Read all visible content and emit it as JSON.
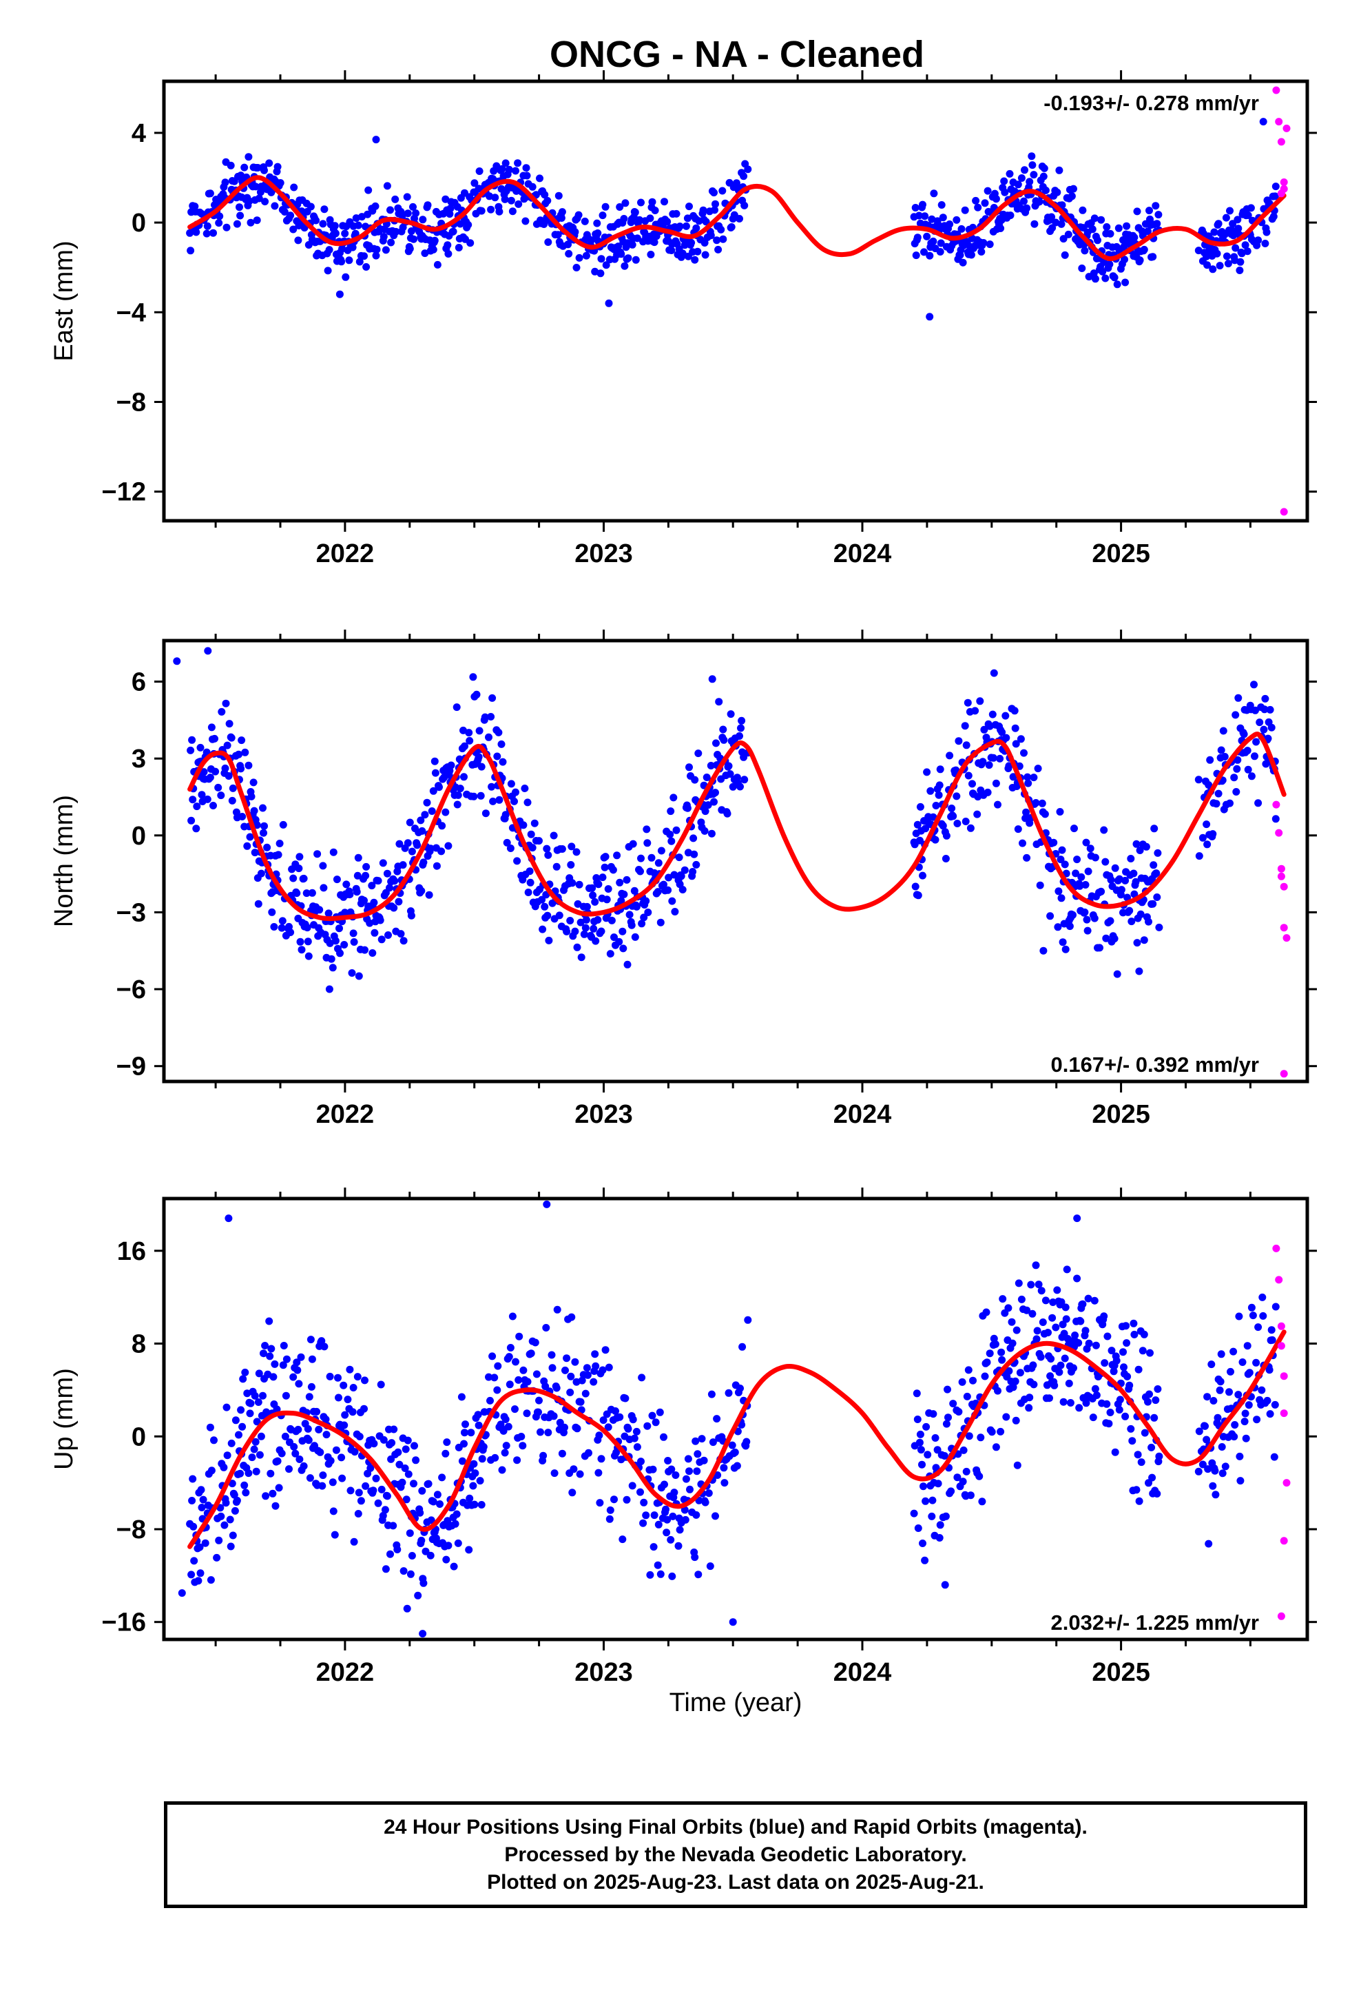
{
  "title": "ONCG  - NA - Cleaned",
  "x_axis_label": "Time (year)",
  "footer": {
    "line1": "24 Hour Positions Using Final Orbits (blue) and Rapid Orbits (magenta).",
    "line2": "Processed by the Nevada Geodetic Laboratory.",
    "line3": "Plotted on 2025-Aug-23. Last data on 2025-Aug-21."
  },
  "colors": {
    "final": "#0000ff",
    "rapid": "#ff00ff",
    "model": "#ff0000",
    "axis": "#000000"
  },
  "chart_data": [
    {
      "type": "scatter",
      "ylabel": "East (mm)",
      "rate_text": "-0.193+/- 0.278 mm/yr",
      "rate_position": "top-right",
      "xlim": [
        2021.3,
        2025.72
      ],
      "ylim": [
        -13.3,
        6.3
      ],
      "xticks": [
        2022,
        2023,
        2024,
        2025
      ],
      "yticks": [
        4,
        0,
        -4,
        -8,
        -12
      ],
      "model": {
        "x": [
          2021.4,
          2021.5,
          2021.6,
          2021.67,
          2021.75,
          2021.85,
          2021.95,
          2022.05,
          2022.15,
          2022.25,
          2022.35,
          2022.45,
          2022.55,
          2022.65,
          2022.75,
          2022.85,
          2022.95,
          2023.05,
          2023.15,
          2023.25,
          2023.35,
          2023.45,
          2023.55,
          2023.65,
          2023.75,
          2023.85,
          2023.95,
          2024.05,
          2024.15,
          2024.25,
          2024.35,
          2024.45,
          2024.55,
          2024.65,
          2024.75,
          2024.85,
          2024.95,
          2025.05,
          2025.15,
          2025.25,
          2025.35,
          2025.45,
          2025.55,
          2025.63
        ],
        "y": [
          -0.2,
          0.5,
          1.6,
          2.0,
          1.3,
          0.0,
          -0.9,
          -0.7,
          0.1,
          0.0,
          -0.3,
          0.3,
          1.5,
          1.8,
          0.8,
          -0.4,
          -1.1,
          -0.6,
          -0.2,
          -0.4,
          -0.6,
          0.3,
          1.5,
          1.4,
          0.0,
          -1.2,
          -1.4,
          -0.8,
          -0.3,
          -0.3,
          -0.7,
          -0.3,
          0.8,
          1.4,
          0.7,
          -0.6,
          -1.6,
          -1.1,
          -0.4,
          -0.3,
          -0.9,
          -0.8,
          0.3,
          1.2
        ]
      },
      "final": {
        "segments": [
          [
            2021.4,
            2023.56
          ],
          [
            2024.2,
            2025.15
          ],
          [
            2025.3,
            2025.6
          ]
        ],
        "amplitude": 0.8,
        "outliers": [
          [
            2022.12,
            3.7
          ],
          [
            2024.26,
            -4.2
          ],
          [
            2023.02,
            -3.6
          ],
          [
            2021.98,
            -3.2
          ],
          [
            2025.55,
            4.5
          ]
        ]
      },
      "rapid": {
        "x": [
          2025.6,
          2025.61,
          2025.62,
          2025.63,
          2025.63,
          2025.64,
          2025.62,
          2025.63
        ],
        "y": [
          5.9,
          4.5,
          3.6,
          1.8,
          1.5,
          4.2,
          1.3,
          -12.9
        ]
      }
    },
    {
      "type": "scatter",
      "ylabel": "North (mm)",
      "rate_text": "0.167+/- 0.392 mm/yr",
      "rate_position": "bottom-right",
      "xlim": [
        2021.3,
        2025.72
      ],
      "ylim": [
        -9.6,
        7.6
      ],
      "xticks": [
        2022,
        2023,
        2024,
        2025
      ],
      "yticks": [
        6,
        3,
        0,
        -3,
        -6,
        -9
      ],
      "model": {
        "x": [
          2021.4,
          2021.45,
          2021.5,
          2021.55,
          2021.6,
          2021.7,
          2021.8,
          2021.9,
          2022.0,
          2022.1,
          2022.2,
          2022.3,
          2022.4,
          2022.5,
          2022.55,
          2022.6,
          2022.7,
          2022.8,
          2022.9,
          2023.0,
          2023.1,
          2023.2,
          2023.3,
          2023.4,
          2023.5,
          2023.55,
          2023.6,
          2023.7,
          2023.8,
          2023.9,
          2024.0,
          2024.1,
          2024.2,
          2024.3,
          2024.4,
          2024.5,
          2024.55,
          2024.6,
          2024.7,
          2024.8,
          2024.9,
          2025.0,
          2025.1,
          2025.2,
          2025.3,
          2025.4,
          2025.5,
          2025.55,
          2025.63
        ],
        "y": [
          1.8,
          2.8,
          3.2,
          3.0,
          1.6,
          -1.2,
          -2.7,
          -3.2,
          -3.2,
          -3.0,
          -2.2,
          -0.5,
          1.8,
          3.4,
          3.1,
          2.0,
          -0.5,
          -2.3,
          -3.0,
          -3.0,
          -2.6,
          -1.8,
          -0.2,
          1.8,
          3.4,
          3.5,
          2.5,
          -0.1,
          -2.0,
          -2.8,
          -2.8,
          -2.3,
          -1.2,
          0.8,
          2.8,
          3.6,
          3.5,
          2.4,
          -0.1,
          -2.0,
          -2.7,
          -2.7,
          -2.2,
          -1.0,
          0.8,
          2.6,
          3.8,
          3.7,
          1.6
        ]
      },
      "final": {
        "segments": [
          [
            2021.4,
            2023.56
          ],
          [
            2024.2,
            2025.15
          ],
          [
            2025.3,
            2025.6
          ]
        ],
        "amplitude": 1.3,
        "outliers": [
          [
            2021.47,
            7.2
          ],
          [
            2021.35,
            6.8
          ],
          [
            2023.42,
            6.1
          ],
          [
            2021.94,
            -6.0
          ],
          [
            2024.7,
            -4.5
          ],
          [
            2025.07,
            -5.3
          ]
        ]
      },
      "rapid": {
        "x": [
          2025.6,
          2025.61,
          2025.62,
          2025.62,
          2025.63,
          2025.63,
          2025.64,
          2025.63
        ],
        "y": [
          1.2,
          0.1,
          -1.3,
          -1.6,
          -2.0,
          -3.6,
          -4.0,
          -9.3
        ]
      }
    },
    {
      "type": "scatter",
      "ylabel": "Up (mm)",
      "rate_text": "2.032+/- 1.225 mm/yr",
      "rate_position": "bottom-right",
      "xlim": [
        2021.3,
        2025.72
      ],
      "ylim": [
        -17.5,
        20.5
      ],
      "xticks": [
        2022,
        2023,
        2024,
        2025
      ],
      "yticks": [
        16,
        8,
        0,
        -8,
        -16
      ],
      "model": {
        "x": [
          2021.4,
          2021.5,
          2021.6,
          2021.7,
          2021.8,
          2021.9,
          2022.0,
          2022.1,
          2022.2,
          2022.3,
          2022.4,
          2022.5,
          2022.6,
          2022.7,
          2022.8,
          2022.9,
          2023.0,
          2023.1,
          2023.2,
          2023.3,
          2023.4,
          2023.5,
          2023.6,
          2023.7,
          2023.8,
          2023.9,
          2024.0,
          2024.1,
          2024.2,
          2024.3,
          2024.4,
          2024.5,
          2024.6,
          2024.7,
          2024.8,
          2024.9,
          2025.0,
          2025.1,
          2025.2,
          2025.3,
          2025.4,
          2025.5,
          2025.63
        ],
        "y": [
          -9.5,
          -6.0,
          -1.5,
          1.5,
          2.0,
          1.2,
          0.0,
          -2.0,
          -5.0,
          -8.0,
          -6.0,
          -1.0,
          3.0,
          4.0,
          3.5,
          2.0,
          0.5,
          -2.0,
          -5.0,
          -6.0,
          -4.0,
          0.5,
          4.5,
          6.0,
          5.5,
          4.0,
          2.0,
          -1.0,
          -3.5,
          -3.0,
          0.5,
          4.5,
          7.0,
          8.0,
          7.5,
          6.0,
          4.0,
          1.0,
          -2.0,
          -2.0,
          1.0,
          4.0,
          9.0
        ]
      },
      "final": {
        "segments": [
          [
            2021.4,
            2023.56
          ],
          [
            2024.2,
            2025.15
          ],
          [
            2025.3,
            2025.6
          ]
        ],
        "amplitude": 4.0,
        "outliers": [
          [
            2021.55,
            18.8
          ],
          [
            2022.78,
            20.0
          ],
          [
            2024.83,
            18.8
          ],
          [
            2022.3,
            -17.0
          ],
          [
            2024.32,
            -12.8
          ],
          [
            2023.5,
            -16.0
          ],
          [
            2021.37,
            -13.5
          ]
        ]
      },
      "rapid": {
        "x": [
          2025.6,
          2025.61,
          2025.62,
          2025.62,
          2025.63,
          2025.63,
          2025.64,
          2025.63,
          2025.62
        ],
        "y": [
          16.2,
          13.5,
          9.5,
          7.8,
          5.2,
          2.0,
          -4.0,
          -9.0,
          -15.5
        ]
      }
    }
  ]
}
